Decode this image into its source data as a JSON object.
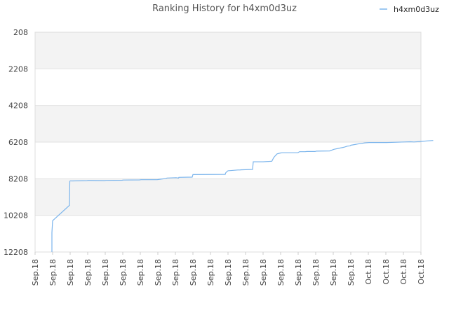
{
  "chart_data": {
    "type": "line",
    "title": "Ranking History for h4xm0d3uz",
    "xlabel": "",
    "ylabel": "",
    "y_reversed": true,
    "ylim": [
      12208,
      208
    ],
    "y_ticks": [
      208,
      2208,
      4208,
      6208,
      8208,
      10208,
      12208
    ],
    "x_tick_labels": [
      "Sep.18",
      "Sep.18",
      "Sep.18",
      "Sep.18",
      "Sep.18",
      "Sep.18",
      "Sep.18",
      "Sep.18",
      "Sep.18",
      "Sep.18",
      "Sep.18",
      "Sep.18",
      "Sep.18",
      "Sep.18",
      "Sep.18",
      "Sep.18",
      "Sep.18",
      "Sep.18",
      "Sep.18",
      "Oct.18",
      "Oct.18",
      "Oct.18",
      "Oct.18"
    ],
    "legend_position": "top-right",
    "grid": "alternating horizontal bands",
    "series": [
      {
        "name": "h4xm0d3uz",
        "color": "#7cb5ec",
        "x": [
          0.96,
          0.96,
          1.0,
          1.0,
          1.96,
          1.98,
          2.0,
          2.04,
          2.08,
          2.96,
          3.04,
          3.96,
          4.04,
          4.96,
          5.04,
          5.96,
          6.04,
          6.96,
          7.04,
          7.44,
          7.52,
          8.04,
          8.18,
          8.2,
          8.96,
          9.0,
          10.84,
          10.86,
          10.9,
          11.0,
          11.56,
          11.6,
          11.7,
          11.72,
          12.4,
          12.44,
          13.0,
          13.5,
          13.6,
          13.7,
          13.8,
          14.0,
          14.1,
          14.96,
          15.0,
          15.04,
          15.08,
          15.4,
          15.5,
          15.96,
          16.04,
          16.8,
          17.04,
          17.6,
          17.8,
          17.96,
          18.0,
          18.4,
          18.8,
          19.04,
          19.6,
          20.04,
          21.04,
          21.4,
          21.6,
          22.04,
          22.4,
          22.7
        ],
        "y": [
          12208,
          11150,
          10500,
          10500,
          9660,
          8350,
          8330,
          8320,
          8330,
          8310,
          8300,
          8310,
          8300,
          8290,
          8280,
          8270,
          8260,
          8260,
          8250,
          8200,
          8170,
          8150,
          8170,
          8130,
          8120,
          7980,
          7970,
          7900,
          7850,
          7770,
          7730,
          7730,
          7730,
          7720,
          7700,
          7280,
          7280,
          7250,
          7060,
          6950,
          6850,
          6800,
          6790,
          6790,
          6780,
          6750,
          6730,
          6730,
          6720,
          6720,
          6700,
          6690,
          6600,
          6490,
          6430,
          6410,
          6380,
          6310,
          6250,
          6230,
          6230,
          6230,
          6200,
          6190,
          6200,
          6170,
          6140,
          6120
        ]
      }
    ]
  }
}
